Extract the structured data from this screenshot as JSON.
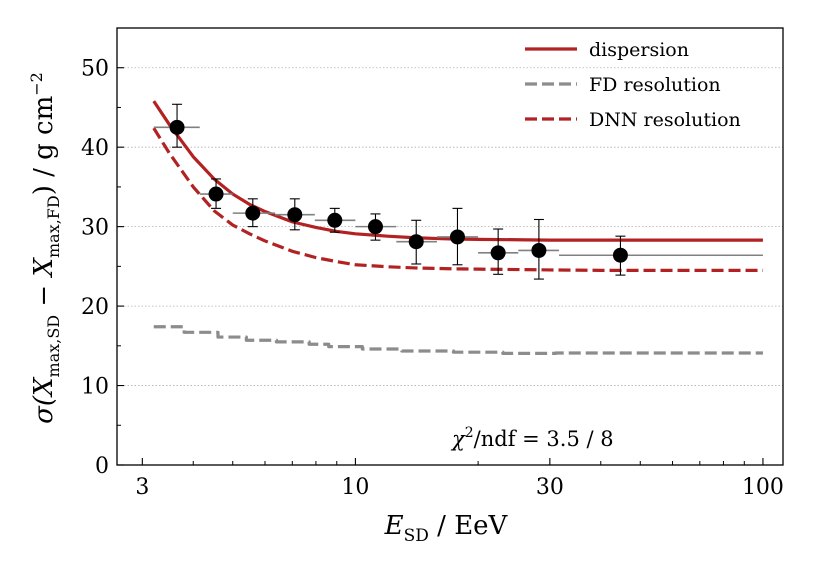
{
  "chart_data": {
    "type": "scatter",
    "x_scale": "log",
    "xlim": [
      2.6,
      112
    ],
    "ylim": [
      0,
      55
    ],
    "xticks": [
      3,
      10,
      30,
      100
    ],
    "xtick_labels": [
      "3",
      "10",
      "30",
      "100"
    ],
    "yticks": [
      0,
      10,
      20,
      30,
      40,
      50
    ],
    "ytick_labels": [
      "0",
      "10",
      "20",
      "30",
      "40",
      "50"
    ],
    "grid": "horizontal dotted",
    "legend_position": "top-right",
    "xlabel": {
      "main": "E",
      "sub": "SD",
      "rest": " / EeV"
    },
    "ylabel": {
      "parts": [
        "σ(X",
        "max,SD",
        " − X",
        "max,FD",
        ") / g cm",
        "−2"
      ]
    },
    "annotation": {
      "chi": "χ",
      "sup": "2",
      "rest": "/ndf  =  3.5 / 8"
    },
    "colors": {
      "dispersion": "#b22222",
      "fd_resolution": "#8c8c8c",
      "dnn_resolution": "#b22222",
      "points": "#000000"
    },
    "series": [
      {
        "name": "dispersion",
        "style": "solid",
        "x": [
          3.2,
          3.5,
          4.0,
          4.5,
          5,
          5.5,
          6,
          7,
          8,
          9,
          10,
          12,
          14,
          17,
          20,
          25,
          30,
          40,
          50,
          60,
          70,
          80,
          90,
          100
        ],
        "y": [
          45.8,
          42.8,
          38.8,
          36.0,
          34.1,
          32.8,
          31.9,
          30.6,
          29.9,
          29.4,
          29.1,
          28.8,
          28.6,
          28.45,
          28.4,
          28.35,
          28.3,
          28.3,
          28.3,
          28.3,
          28.3,
          28.3,
          28.3,
          28.3
        ]
      },
      {
        "name": "FD resolution",
        "style": "dashed",
        "x": [
          3.2,
          3.8,
          3.8,
          4.6,
          4.6,
          5.4,
          5.4,
          6.4,
          6.4,
          7.7,
          7.7,
          8.6,
          8.6,
          10.4,
          10.4,
          13.0,
          13.0,
          17.4,
          17.4,
          23.0,
          23.0,
          31.0,
          31.0,
          100
        ],
        "y": [
          17.4,
          17.4,
          16.7,
          16.7,
          16.1,
          16.1,
          15.7,
          15.7,
          15.5,
          15.5,
          15.2,
          15.2,
          14.9,
          14.9,
          14.6,
          14.6,
          14.35,
          14.35,
          14.2,
          14.2,
          14.05,
          14.05,
          14.1,
          14.1
        ]
      },
      {
        "name": "DNN resolution",
        "style": "dashed",
        "x": [
          3.2,
          3.5,
          4.0,
          4.5,
          5,
          5.5,
          6,
          7,
          8,
          9,
          10,
          12,
          14,
          17,
          20,
          25,
          30,
          40,
          50,
          60,
          70,
          80,
          90,
          100
        ],
        "y": [
          42.4,
          39.2,
          35.0,
          32.0,
          30.2,
          29.1,
          28.2,
          26.9,
          26.1,
          25.6,
          25.2,
          24.95,
          24.8,
          24.7,
          24.65,
          24.6,
          24.55,
          24.5,
          24.5,
          24.5,
          24.5,
          24.5,
          24.5,
          24.5
        ]
      },
      {
        "name": "data",
        "style": "points",
        "points": [
          {
            "x": 3.65,
            "y": 42.5,
            "xlo": 3.2,
            "xhi": 4.15,
            "ylo": 40.0,
            "yhi": 45.4
          },
          {
            "x": 4.55,
            "y": 34.1,
            "xlo": 4.15,
            "xhi": 5.0,
            "ylo": 32.3,
            "yhi": 36.0
          },
          {
            "x": 5.6,
            "y": 31.7,
            "xlo": 5.0,
            "xhi": 6.35,
            "ylo": 30.0,
            "yhi": 33.5
          },
          {
            "x": 7.1,
            "y": 31.5,
            "xlo": 6.35,
            "xhi": 7.95,
            "ylo": 29.6,
            "yhi": 33.5
          },
          {
            "x": 8.9,
            "y": 30.8,
            "xlo": 7.95,
            "xhi": 10.0,
            "ylo": 29.3,
            "yhi": 32.3
          },
          {
            "x": 11.2,
            "y": 30.0,
            "xlo": 10.0,
            "xhi": 12.6,
            "ylo": 28.3,
            "yhi": 31.6
          },
          {
            "x": 14.1,
            "y": 28.1,
            "xlo": 12.6,
            "xhi": 15.85,
            "ylo": 25.3,
            "yhi": 30.8
          },
          {
            "x": 17.8,
            "y": 28.7,
            "xlo": 15.85,
            "xhi": 20.0,
            "ylo": 25.2,
            "yhi": 32.3
          },
          {
            "x": 22.4,
            "y": 26.7,
            "xlo": 20.0,
            "xhi": 25.1,
            "ylo": 24.0,
            "yhi": 29.7
          },
          {
            "x": 28.2,
            "y": 27.0,
            "xlo": 25.1,
            "xhi": 31.6,
            "ylo": 23.4,
            "yhi": 30.9
          },
          {
            "x": 44.7,
            "y": 26.4,
            "xlo": 31.6,
            "xhi": 100,
            "ylo": 23.9,
            "yhi": 28.8
          }
        ]
      }
    ]
  }
}
